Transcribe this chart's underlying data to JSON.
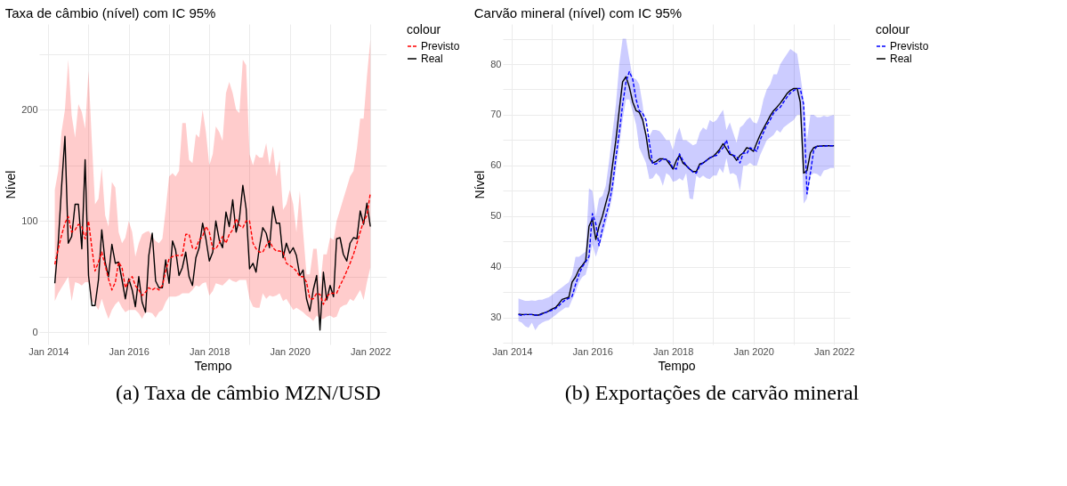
{
  "chart_data": [
    {
      "type": "line",
      "title": "Taxa de câmbio (nível) com IC 95%",
      "xlabel": "Tempo",
      "ylabel": "Nível",
      "legend_title": "colour",
      "legend": "right",
      "grid": true,
      "x": [
        "2014-03",
        "2014-04",
        "2014-05",
        "2014-06",
        "2014-07",
        "2014-08",
        "2014-09",
        "2014-10",
        "2014-11",
        "2014-12",
        "2015-01",
        "2015-02",
        "2015-03",
        "2015-04",
        "2015-05",
        "2015-06",
        "2015-07",
        "2015-08",
        "2015-09",
        "2015-10",
        "2015-11",
        "2015-12",
        "2016-01",
        "2016-02",
        "2016-03",
        "2016-04",
        "2016-05",
        "2016-06",
        "2016-07",
        "2016-08",
        "2016-09",
        "2016-10",
        "2016-11",
        "2016-12",
        "2017-01",
        "2017-02",
        "2017-03",
        "2017-04",
        "2017-05",
        "2017-06",
        "2017-07",
        "2017-08",
        "2017-09",
        "2017-10",
        "2017-11",
        "2017-12",
        "2018-01",
        "2018-02",
        "2018-03",
        "2018-04",
        "2018-05",
        "2018-06",
        "2018-07",
        "2018-08",
        "2018-09",
        "2018-10",
        "2018-11",
        "2018-12",
        "2019-01",
        "2019-02",
        "2019-03",
        "2019-04",
        "2019-05",
        "2019-06",
        "2019-07",
        "2019-08",
        "2019-09",
        "2019-10",
        "2019-11",
        "2019-12",
        "2020-01",
        "2020-02",
        "2020-03",
        "2020-04",
        "2020-05",
        "2020-06",
        "2020-07",
        "2020-08",
        "2020-09",
        "2020-10",
        "2020-11",
        "2020-12",
        "2021-01",
        "2021-02",
        "2021-03",
        "2021-04",
        "2021-05",
        "2021-06",
        "2021-07",
        "2021-08",
        "2021-09",
        "2021-10",
        "2021-11",
        "2021-12",
        "2022-01"
      ],
      "xlim": [
        "2013-10-10",
        "2022-05-25"
      ],
      "xticks": [
        {
          "value": "2014-01",
          "label": "Jan 2014"
        },
        {
          "value": "2015-01",
          "label": null
        },
        {
          "value": "2016-01",
          "label": "Jan 2016"
        },
        {
          "value": "2017-01",
          "label": null
        },
        {
          "value": "2018-01",
          "label": "Jan 2018"
        },
        {
          "value": "2019-01",
          "label": null
        },
        {
          "value": "2020-01",
          "label": "Jan 2020"
        },
        {
          "value": "2021-01",
          "label": null
        },
        {
          "value": "2022-01",
          "label": "Jan 2022"
        }
      ],
      "ylim": [
        -11,
        277
      ],
      "yticks": [
        0,
        {
          "value": 50,
          "label": null
        },
        100,
        {
          "value": 150,
          "label": null
        },
        200,
        {
          "value": 250,
          "label": null
        }
      ],
      "series": [
        {
          "name": "Previsto",
          "color": "#ff0000",
          "line_style": "dashed",
          "values": [
            61,
            75,
            87,
            98,
            104,
            90,
            92,
            97,
            95,
            84,
            100,
            75,
            55,
            63,
            72,
            60,
            48,
            38,
            45,
            63,
            58,
            40,
            46,
            50,
            42,
            38,
            33,
            36,
            40,
            38,
            40,
            38,
            42,
            55,
            66,
            68,
            69,
            69,
            69,
            88,
            88,
            76,
            75,
            83,
            86,
            95,
            90,
            75,
            75,
            80,
            86,
            80,
            88,
            92,
            102,
            96,
            94,
            100,
            100,
            80,
            75,
            72,
            72,
            78,
            82,
            76,
            73,
            73,
            72,
            62,
            60,
            58,
            55,
            50,
            50,
            45,
            30,
            30,
            35,
            34,
            25,
            32,
            35,
            35,
            35,
            42,
            48,
            55,
            62,
            70,
            80,
            90,
            100,
            105,
            125
          ],
          "upper": [
            128,
            145,
            180,
            200,
            245,
            195,
            175,
            205,
            198,
            183,
            235,
            170,
            115,
            120,
            148,
            105,
            95,
            135,
            130,
            90,
            80,
            85,
            100,
            90,
            68,
            80,
            88,
            90,
            91,
            86,
            82,
            80,
            84,
            110,
            140,
            143,
            140,
            145,
            188,
            188,
            155,
            152,
            178,
            175,
            200,
            180,
            150,
            160,
            185,
            180,
            172,
            215,
            225,
            215,
            200,
            197,
            245,
            240,
            160,
            150,
            160,
            157,
            157,
            170,
            150,
            167,
            140,
            155,
            110,
            115,
            128,
            115,
            90,
            127,
            90,
            52,
            52,
            75,
            75,
            40,
            70,
            70,
            85,
            83,
            100,
            110,
            120,
            130,
            140,
            145,
            165,
            192,
            192,
            230,
            263
          ],
          "lower": [
            28,
            35,
            40,
            45,
            50,
            28,
            45,
            44,
            42,
            45,
            45,
            28,
            25,
            20,
            30,
            20,
            12,
            20,
            25,
            28,
            22,
            18,
            20,
            20,
            20,
            17,
            12,
            18,
            18,
            17,
            13,
            18,
            20,
            27,
            32,
            32,
            32,
            33,
            35,
            35,
            35,
            38,
            42,
            41,
            44,
            45,
            33,
            37,
            44,
            43,
            42,
            45,
            48,
            46,
            45,
            47,
            47,
            47,
            30,
            23,
            22,
            22,
            35,
            30,
            33,
            32,
            33,
            35,
            28,
            30,
            25,
            20,
            22,
            20,
            18,
            15,
            13,
            10,
            15,
            12,
            12,
            14,
            15,
            13,
            14,
            22,
            24,
            25,
            30,
            28,
            33,
            38,
            29,
            45,
            58
          ]
        },
        {
          "name": "Real",
          "color": "#000000",
          "line_style": "solid",
          "values": [
            44,
            80,
            130,
            176,
            80,
            86,
            115,
            115,
            75,
            155,
            51,
            24,
            24,
            47,
            92,
            63,
            50,
            79,
            62,
            63,
            47,
            30,
            48,
            38,
            23,
            50,
            27,
            18,
            69,
            89,
            46,
            40,
            40,
            65,
            44,
            82,
            74,
            51,
            58,
            72,
            50,
            42,
            67,
            76,
            98,
            84,
            64,
            72,
            100,
            83,
            76,
            108,
            95,
            119,
            90,
            102,
            132,
            111,
            57,
            62,
            54,
            77,
            94,
            89,
            76,
            113,
            98,
            98,
            67,
            80,
            71,
            76,
            69,
            51,
            56,
            30,
            19,
            38,
            51,
            2,
            54,
            29,
            42,
            32,
            84,
            85,
            70,
            64,
            80,
            85,
            84,
            109,
            97,
            116,
            95
          ]
        }
      ],
      "annotations": [
        "(a) Taxa de câmbio MZN/USD"
      ]
    },
    {
      "type": "line",
      "title": "Carvão mineral (nível) com IC 95%",
      "xlabel": "Tempo",
      "ylabel": "Nível",
      "legend_title": "colour",
      "legend": "right",
      "grid": true,
      "x": [
        "2014-03",
        "2014-04",
        "2014-05",
        "2014-06",
        "2014-07",
        "2014-08",
        "2014-09",
        "2014-10",
        "2014-11",
        "2014-12",
        "2015-01",
        "2015-02",
        "2015-03",
        "2015-04",
        "2015-05",
        "2015-06",
        "2015-07",
        "2015-08",
        "2015-09",
        "2015-10",
        "2015-11",
        "2015-12",
        "2016-01",
        "2016-02",
        "2016-03",
        "2016-04",
        "2016-05",
        "2016-06",
        "2016-07",
        "2016-08",
        "2016-09",
        "2016-10",
        "2016-11",
        "2016-12",
        "2017-01",
        "2017-02",
        "2017-03",
        "2017-04",
        "2017-05",
        "2017-06",
        "2017-07",
        "2017-08",
        "2017-09",
        "2017-10",
        "2017-11",
        "2017-12",
        "2018-01",
        "2018-02",
        "2018-03",
        "2018-04",
        "2018-05",
        "2018-06",
        "2018-07",
        "2018-08",
        "2018-09",
        "2018-10",
        "2018-11",
        "2018-12",
        "2019-01",
        "2019-02",
        "2019-03",
        "2019-04",
        "2019-05",
        "2019-06",
        "2019-07",
        "2019-08",
        "2019-09",
        "2019-10",
        "2019-11",
        "2019-12",
        "2020-01",
        "2020-02",
        "2020-03",
        "2020-04",
        "2020-05",
        "2020-06",
        "2020-07",
        "2020-08",
        "2020-09",
        "2020-10",
        "2020-11",
        "2020-12",
        "2021-01",
        "2021-02",
        "2021-03",
        "2021-04",
        "2021-05",
        "2021-06",
        "2021-07",
        "2021-08",
        "2021-09",
        "2021-10",
        "2021-11",
        "2021-12",
        "2022-01"
      ],
      "xlim": [
        "2013-10-10",
        "2022-05-25"
      ],
      "xticks": [
        {
          "value": "2014-01",
          "label": "Jan 2014"
        },
        {
          "value": "2015-01",
          "label": null
        },
        {
          "value": "2016-01",
          "label": "Jan 2016"
        },
        {
          "value": "2017-01",
          "label": null
        },
        {
          "value": "2018-01",
          "label": "Jan 2018"
        },
        {
          "value": "2019-01",
          "label": null
        },
        {
          "value": "2020-01",
          "label": "Jan 2020"
        },
        {
          "value": "2021-01",
          "label": null
        },
        {
          "value": "2022-01",
          "label": "Jan 2022"
        }
      ],
      "ylim": [
        24.7,
        87.9
      ],
      "yticks": [
        {
          "value": 25,
          "label": null
        },
        30,
        {
          "value": 35,
          "label": null
        },
        40,
        {
          "value": 45,
          "label": null
        },
        50,
        {
          "value": 55,
          "label": null
        },
        60,
        {
          "value": 65,
          "label": null
        },
        70,
        {
          "value": 75,
          "label": null
        },
        80,
        {
          "value": 85,
          "label": null
        }
      ],
      "series": [
        {
          "name": "Previsto",
          "color": "#0000ff",
          "line_style": "dashed",
          "values": [
            30.6,
            30.4,
            30.6,
            30.6,
            30.6,
            30.5,
            30.4,
            30.7,
            31.0,
            31.2,
            31.5,
            31.8,
            32.3,
            33.0,
            33.5,
            33.8,
            34.2,
            36.5,
            38.5,
            40.0,
            41.0,
            42.0,
            50.5,
            48.5,
            44.2,
            47.5,
            50.0,
            52.5,
            56.0,
            61.5,
            66.5,
            72.0,
            76.5,
            78.5,
            77.0,
            73.0,
            70.8,
            70.3,
            69.0,
            64.5,
            60.3,
            60.3,
            60.8,
            61.3,
            61.2,
            60.8,
            59.5,
            59.3,
            62.3,
            61.0,
            60.0,
            59.3,
            58.7,
            58.5,
            60.0,
            60.5,
            61.0,
            61.5,
            61.8,
            62.0,
            62.8,
            63.5,
            65.0,
            62.5,
            62.0,
            61.8,
            60.5,
            62.5,
            62.3,
            63.5,
            63.2,
            62.8,
            65.0,
            66.5,
            68.0,
            69.0,
            70.3,
            71.0,
            71.5,
            72.5,
            73.5,
            74.3,
            74.8,
            75.2,
            75.2,
            72.0,
            54.4,
            58.5,
            63.0,
            63.8,
            63.8,
            63.8,
            63.9,
            63.9,
            63.9
          ],
          "upper": [
            33.8,
            33.5,
            33.3,
            33.3,
            33.4,
            33.3,
            33.5,
            33.5,
            33.8,
            34.0,
            34.5,
            35.0,
            35.5,
            36.0,
            36.5,
            37.0,
            38.5,
            42.0,
            42.0,
            42.5,
            43.0,
            55.5,
            55.0,
            50.0,
            53.5,
            54.0,
            56.0,
            61.0,
            66.5,
            72.0,
            80.0,
            85.0,
            85.0,
            81.0,
            77.3,
            77.0,
            76.0,
            72.0,
            66.0,
            65.8,
            67.0,
            67.0,
            66.8,
            66.0,
            65.0,
            65.0,
            63.0,
            66.0,
            67.5,
            65.0,
            65.0,
            64.5,
            64.0,
            64.3,
            66.5,
            67.5,
            67.0,
            69.0,
            68.5,
            69.0,
            70.0,
            71.0,
            67.0,
            68.5,
            66.5,
            64.5,
            67.5,
            68.0,
            69.0,
            69.5,
            68.5,
            68.3,
            70.0,
            73.0,
            75.0,
            76.0,
            78.0,
            78.0,
            80.0,
            81.0,
            82.0,
            83.0,
            82.5,
            82.0,
            78.0,
            73.0,
            65.0,
            70.0,
            70.0,
            69.5,
            69.5,
            69.8,
            69.6,
            69.8,
            70.0
          ],
          "lower": [
            29.3,
            29.0,
            28.3,
            28.0,
            29.0,
            27.5,
            28.5,
            29.0,
            29.3,
            29.5,
            30.0,
            30.5,
            31.0,
            31.5,
            32.0,
            32.0,
            33.5,
            35.0,
            37.0,
            38.0,
            38.5,
            41.0,
            44.5,
            42.0,
            44.0,
            46.0,
            48.5,
            51.0,
            54.0,
            59.0,
            64.0,
            69.0,
            73.0,
            73.0,
            70.5,
            68.0,
            63.5,
            62.0,
            60.5,
            57.3,
            57.5,
            58.5,
            57.8,
            56.0,
            58.5,
            58.0,
            56.8,
            57.0,
            57.5,
            57.0,
            58.5,
            53.5,
            53.3,
            58.0,
            57.5,
            58.0,
            57.5,
            57.3,
            58.0,
            58.0,
            59.5,
            58.5,
            61.5,
            58.3,
            58.5,
            58.0,
            55.0,
            60.0,
            60.0,
            60.5,
            60.0,
            60.0,
            62.0,
            63.5,
            65.0,
            65.5,
            66.0,
            67.0,
            66.5,
            67.5,
            68.0,
            68.5,
            69.0,
            70.0,
            70.0,
            52.5,
            53.5,
            58.0,
            58.5,
            58.3,
            57.8,
            59.0,
            59.2,
            59.5,
            59.5
          ]
        },
        {
          "name": "Real",
          "color": "#000000",
          "line_style": "solid",
          "values": [
            30.7,
            30.6,
            30.6,
            30.6,
            30.6,
            30.5,
            30.5,
            30.8,
            31.0,
            31.3,
            31.7,
            32.0,
            32.7,
            33.6,
            33.8,
            34.0,
            37.0,
            38.0,
            39.5,
            40.3,
            41.2,
            48.0,
            49.5,
            45.4,
            48.0,
            50.0,
            52.5,
            55.0,
            60.0,
            65.0,
            71.0,
            76.5,
            77.5,
            75.5,
            72.5,
            70.8,
            70.5,
            69.0,
            66.0,
            61.5,
            60.5,
            60.8,
            61.3,
            61.3,
            61.2,
            60.3,
            59.3,
            61.0,
            62.0,
            60.5,
            60.0,
            59.3,
            58.8,
            58.8,
            60.3,
            60.5,
            61.0,
            61.5,
            61.8,
            62.5,
            63.2,
            64.3,
            63.3,
            62.2,
            62.0,
            61.0,
            62.0,
            62.5,
            63.5,
            63.3,
            62.8,
            64.5,
            66.0,
            67.3,
            68.5,
            69.8,
            70.8,
            71.5,
            72.3,
            73.2,
            74.2,
            74.8,
            75.2,
            75.2,
            72.5,
            58.5,
            59.0,
            62.5,
            63.5,
            63.8,
            63.8,
            63.9,
            63.9,
            63.9,
            63.9
          ]
        }
      ],
      "annotations": [
        "(b) Exportações de carvão mineral"
      ]
    }
  ]
}
